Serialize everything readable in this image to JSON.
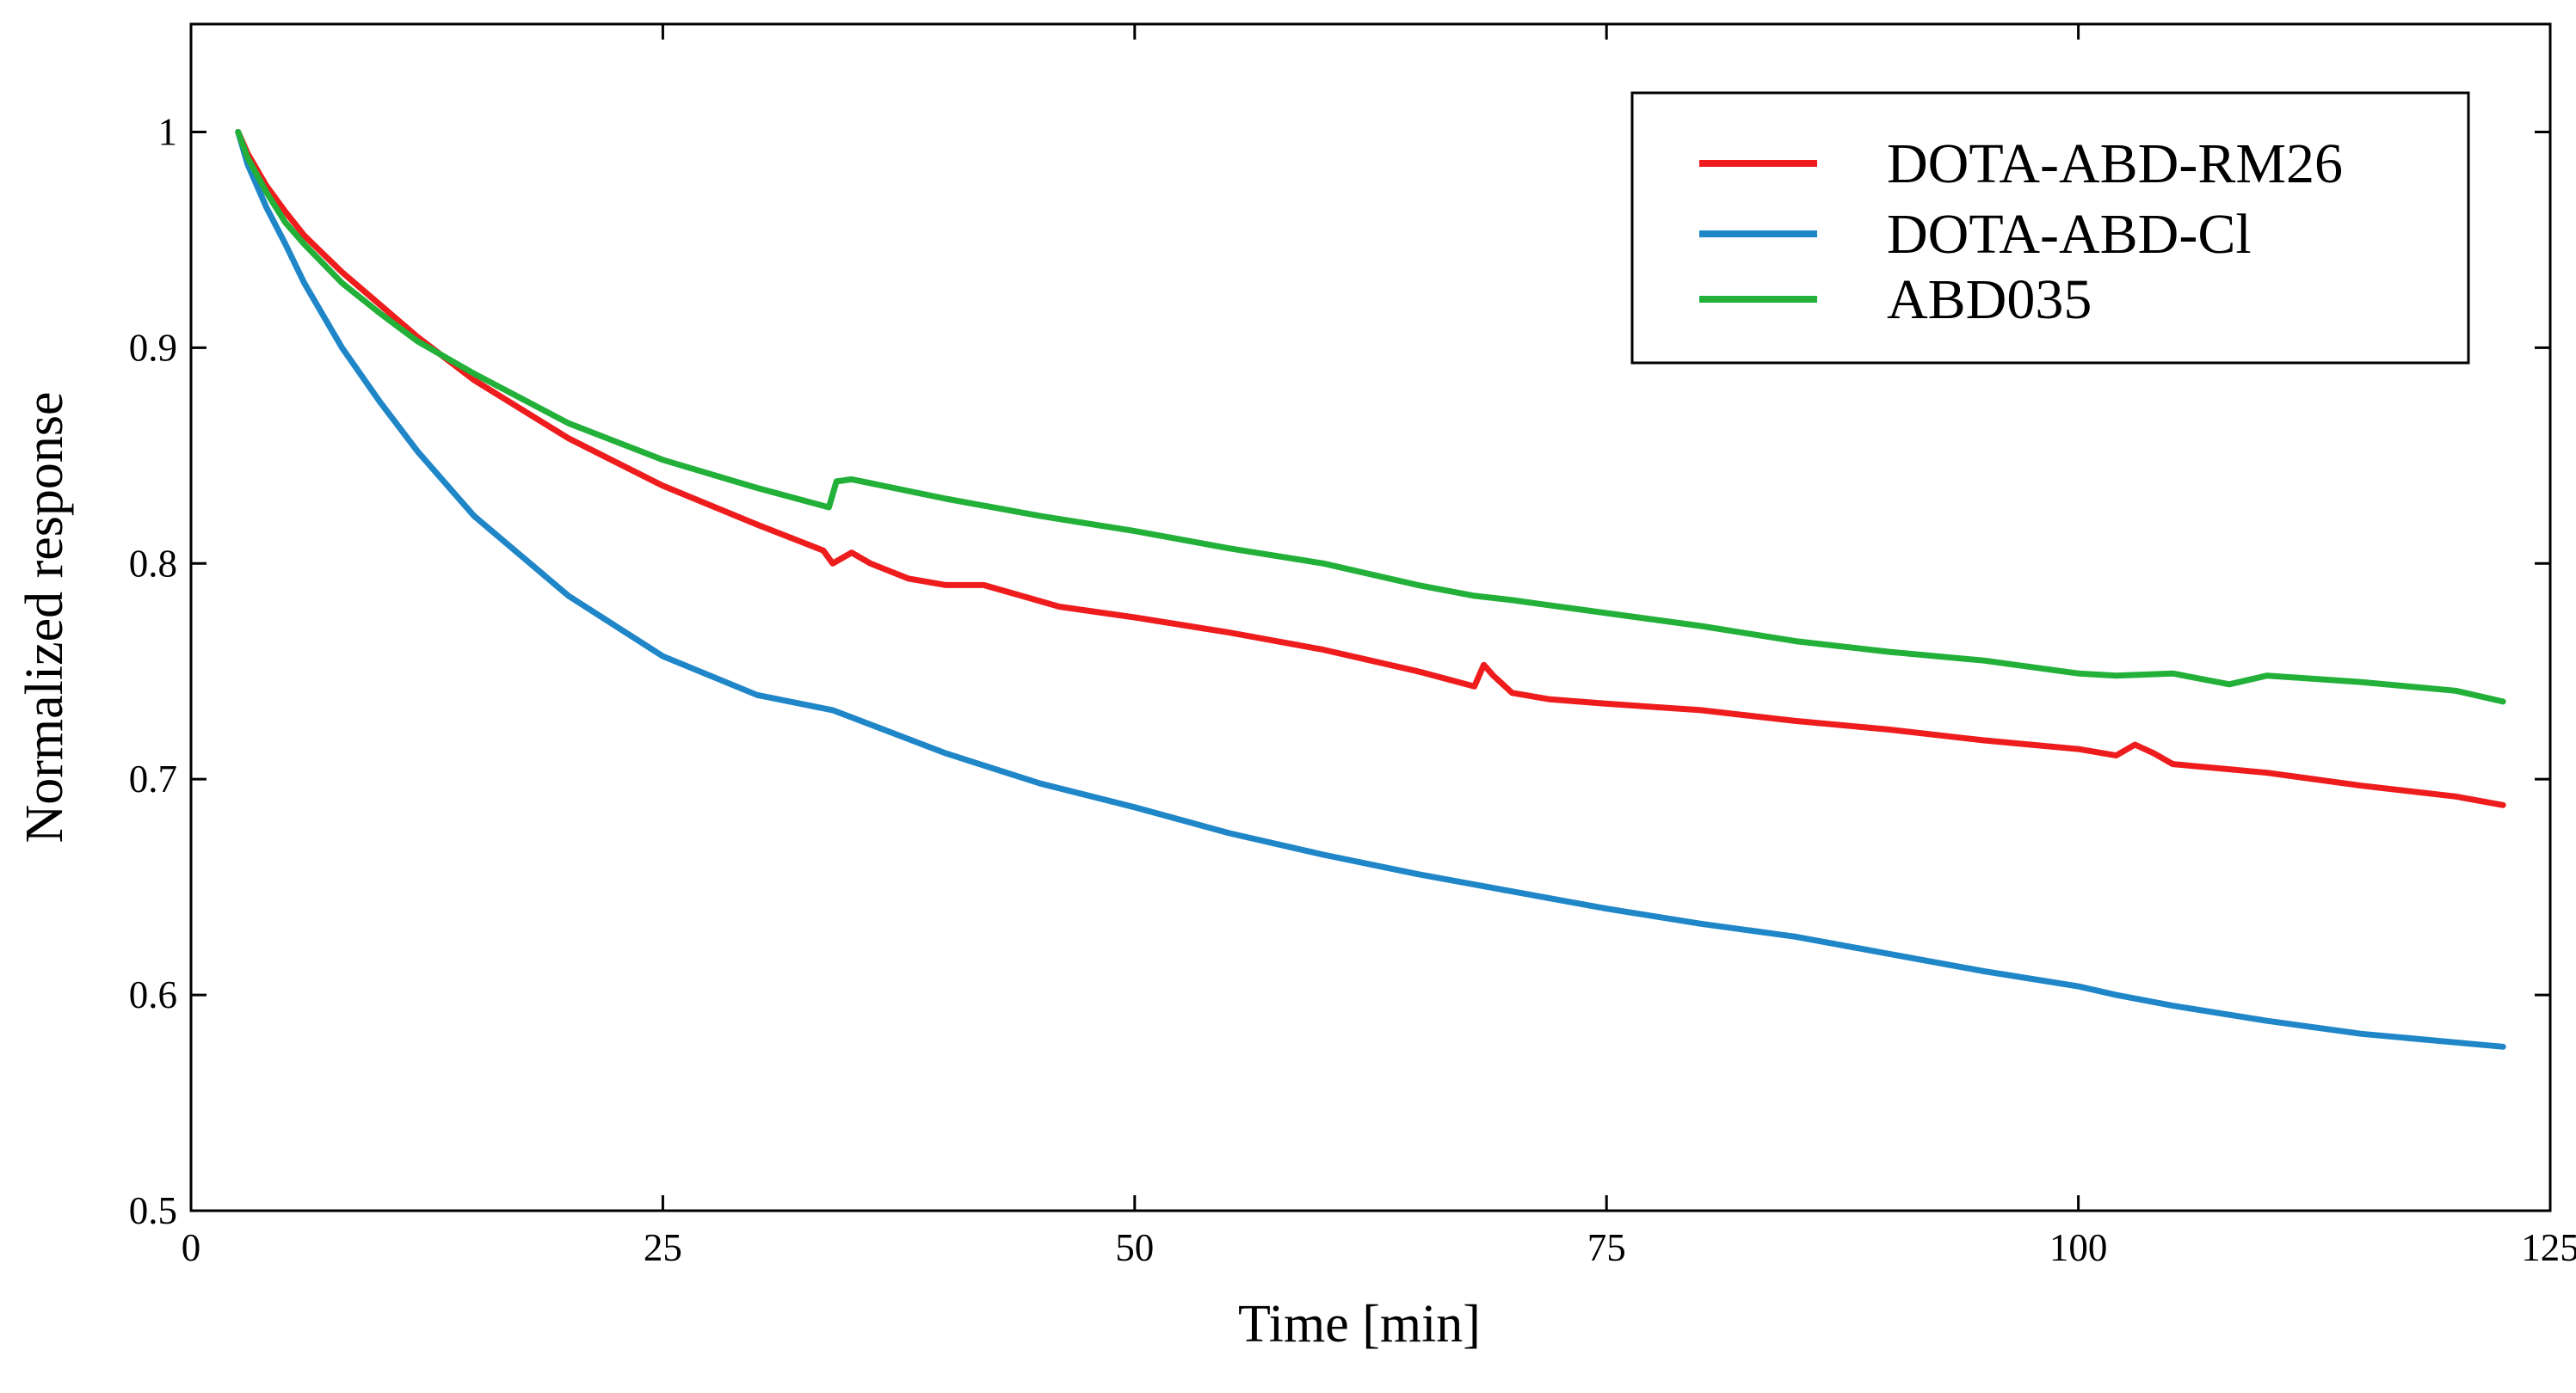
{
  "chart_data": {
    "type": "line",
    "title": "",
    "xlabel": "Time [min]",
    "ylabel": "Normalized response",
    "xlim": [
      0,
      125
    ],
    "ylim": [
      0.5,
      1.05
    ],
    "xticks": [
      0,
      25,
      50,
      75,
      100,
      125
    ],
    "xtick_labels": [
      "0",
      "25",
      "50",
      "75",
      "100",
      "125"
    ],
    "yticks": [
      0.5,
      0.6,
      0.7,
      0.8,
      0.9,
      1.0
    ],
    "ytick_labels": [
      "0.5",
      "0.6",
      "0.7",
      "0.8",
      "0.9",
      "1"
    ],
    "grid": false,
    "legend_position": "top-right",
    "series": [
      {
        "name": "DOTA-ABD-RM26",
        "color": "#ee1c1c",
        "x": [
          2.5,
          3,
          4,
          5,
          6,
          8,
          10,
          12,
          15,
          20,
          25,
          30,
          33.5,
          34,
          35,
          36,
          38,
          40,
          42,
          44,
          46,
          50,
          55,
          60,
          65,
          68,
          68.5,
          69,
          70,
          72,
          75,
          80,
          85,
          90,
          95,
          100,
          102,
          103,
          104,
          105,
          110,
          115,
          120,
          122.5
        ],
        "values": [
          1.0,
          0.99,
          0.975,
          0.963,
          0.952,
          0.935,
          0.92,
          0.905,
          0.885,
          0.858,
          0.836,
          0.818,
          0.806,
          0.8,
          0.805,
          0.8,
          0.793,
          0.79,
          0.79,
          0.785,
          0.78,
          0.775,
          0.768,
          0.76,
          0.75,
          0.743,
          0.753,
          0.748,
          0.74,
          0.737,
          0.735,
          0.732,
          0.727,
          0.723,
          0.718,
          0.714,
          0.711,
          0.716,
          0.712,
          0.707,
          0.703,
          0.697,
          0.692,
          0.688
        ]
      },
      {
        "name": "DOTA-ABD-Cl",
        "color": "#1f86c8",
        "x": [
          2.5,
          3,
          4,
          5,
          6,
          8,
          10,
          12,
          15,
          20,
          25,
          30,
          34,
          40,
          45,
          50,
          55,
          60,
          65,
          70,
          75,
          80,
          85,
          90,
          95,
          100,
          102,
          105,
          110,
          115,
          120,
          122.5
        ],
        "values": [
          1.0,
          0.985,
          0.965,
          0.948,
          0.93,
          0.9,
          0.875,
          0.852,
          0.822,
          0.785,
          0.757,
          0.739,
          0.732,
          0.712,
          0.698,
          0.687,
          0.675,
          0.665,
          0.656,
          0.648,
          0.64,
          0.633,
          0.627,
          0.619,
          0.611,
          0.604,
          0.6,
          0.595,
          0.588,
          0.582,
          0.578,
          0.576
        ]
      },
      {
        "name": "ABD035",
        "color": "#22b039",
        "x": [
          2.5,
          3,
          4,
          5,
          6,
          8,
          10,
          12,
          15,
          20,
          25,
          30,
          33.8,
          34.2,
          35,
          40,
          45,
          50,
          55,
          60,
          65,
          68,
          70,
          75,
          80,
          85,
          90,
          95,
          100,
          102,
          105,
          108,
          110,
          115,
          120,
          122.5
        ],
        "values": [
          1.0,
          0.988,
          0.972,
          0.958,
          0.948,
          0.93,
          0.916,
          0.903,
          0.888,
          0.865,
          0.848,
          0.835,
          0.826,
          0.838,
          0.839,
          0.83,
          0.822,
          0.815,
          0.807,
          0.8,
          0.79,
          0.785,
          0.783,
          0.777,
          0.771,
          0.764,
          0.759,
          0.755,
          0.749,
          0.748,
          0.749,
          0.744,
          0.748,
          0.745,
          0.741,
          0.736
        ]
      }
    ],
    "annotations": []
  }
}
